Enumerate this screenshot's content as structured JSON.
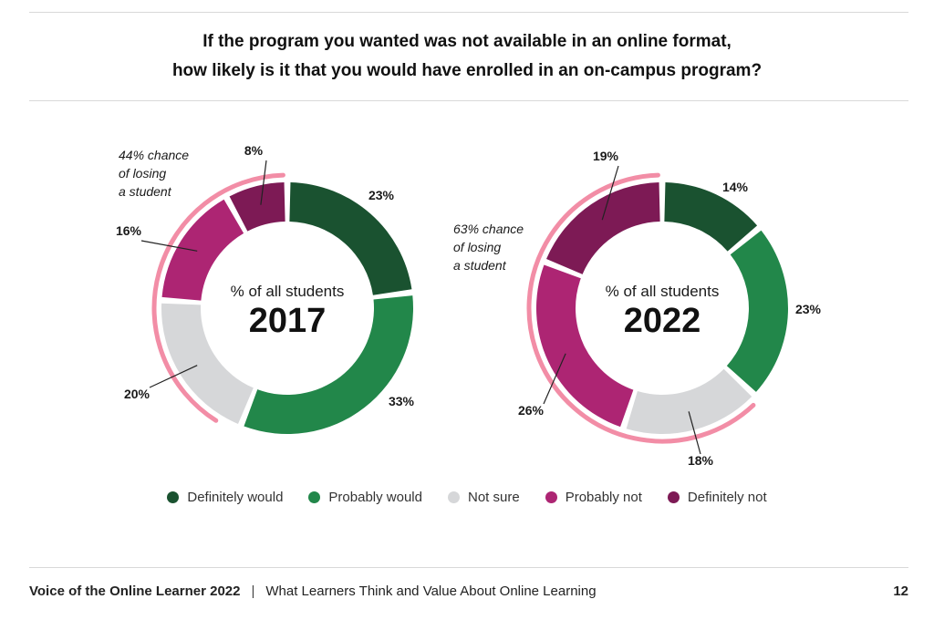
{
  "header": {
    "title_line1": "If the program you wanted was not available in an online format,",
    "title_line2": "how likely is it that you would have enrolled in an on-campus program?"
  },
  "colors": {
    "Definitely would": "#1a5230",
    "Probably would": "#22874a",
    "Not sure": "#d6d7d9",
    "Probably not": "#ad2573",
    "Definitely not": "#7d1a55",
    "highlight_arc": "#f28da6"
  },
  "chart_data": [
    {
      "type": "pie",
      "categories": [
        "Definitely would",
        "Probably would",
        "Not sure",
        "Probably not",
        "Definitely not"
      ],
      "values": [
        23,
        33,
        20,
        16,
        8
      ],
      "value_labels": [
        "23%",
        "33%",
        "20%",
        "16%",
        "8%"
      ],
      "center_label": "% of all students",
      "center_year": "2017",
      "annotation_lines": [
        "44% chance",
        "of losing",
        "a student"
      ],
      "legend": "bottom"
    },
    {
      "type": "pie",
      "categories": [
        "Definitely would",
        "Probably would",
        "Not sure",
        "Probably not",
        "Definitely not"
      ],
      "values": [
        14,
        23,
        18,
        26,
        19
      ],
      "value_labels": [
        "14%",
        "23%",
        "18%",
        "26%",
        "19%"
      ],
      "center_label": "% of all students",
      "center_year": "2022",
      "annotation_lines": [
        "63% chance",
        "of losing",
        "a student"
      ],
      "legend": "bottom"
    }
  ],
  "legend": {
    "items": [
      {
        "label": "Definitely would",
        "color": "#1a5230"
      },
      {
        "label": "Probably would",
        "color": "#22874a"
      },
      {
        "label": "Not sure",
        "color": "#d6d7d9"
      },
      {
        "label": "Probably not",
        "color": "#ad2573"
      },
      {
        "label": "Definitely not",
        "color": "#7d1a55"
      }
    ]
  },
  "footer": {
    "brand": "Voice of the Online Learner 2022",
    "separator": "|",
    "subtitle": "What Learners Think and Value About Online Learning",
    "page": "12"
  }
}
